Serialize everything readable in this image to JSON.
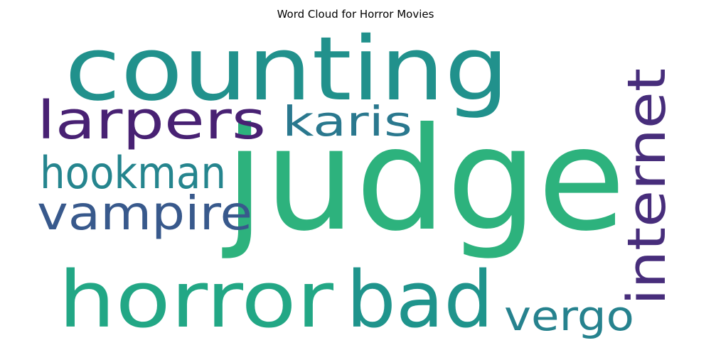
{
  "chart_data": {
    "type": "wordcloud",
    "title": "Word Cloud for Horror Movies",
    "words": [
      {
        "text": "judge",
        "weight": 1.0,
        "color": "#2db27d"
      },
      {
        "text": "counting",
        "weight": 0.62,
        "color": "#21918c"
      },
      {
        "text": "horror",
        "weight": 0.55,
        "color": "#22a785"
      },
      {
        "text": "bad",
        "weight": 0.55,
        "color": "#1f948c"
      },
      {
        "text": "larpers",
        "weight": 0.37,
        "color": "#482173"
      },
      {
        "text": "internet",
        "weight": 0.37,
        "color": "#472d7b"
      },
      {
        "text": "vampire",
        "weight": 0.33,
        "color": "#38598c"
      },
      {
        "text": "hookman",
        "weight": 0.31,
        "color": "#25858e"
      },
      {
        "text": "karis",
        "weight": 0.29,
        "color": "#2a788e"
      },
      {
        "text": "vergo",
        "weight": 0.29,
        "color": "#26828e"
      }
    ]
  }
}
